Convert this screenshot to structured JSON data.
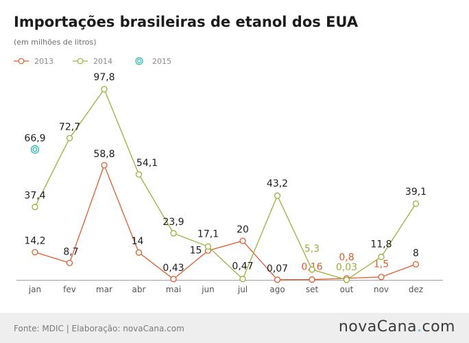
{
  "chart_data": {
    "type": "line",
    "title": "Importações brasileiras de etanol dos EUA",
    "subtitle": "(em milhões de litros)",
    "xlabel": "",
    "ylabel": "",
    "categories": [
      "jan",
      "fev",
      "mar",
      "abr",
      "mai",
      "jun",
      "jul",
      "ago",
      "set",
      "out",
      "nov",
      "dez"
    ],
    "ylim": [
      0,
      97.8
    ],
    "grid": false,
    "legend_position": "top-left",
    "series": [
      {
        "name": "2013",
        "color": "#e05a2b",
        "values": [
          14.2,
          8.7,
          58.8,
          14,
          0.43,
          15,
          20,
          0.07,
          0.16,
          0.8,
          1.5,
          8
        ],
        "labels": [
          "14,2",
          "8,7",
          "58,8",
          "14",
          "0,43",
          "15",
          "20",
          "0,07",
          "0,16",
          "0,8",
          "1,5",
          "8"
        ]
      },
      {
        "name": "2014",
        "color": "#9ab03a",
        "values": [
          37.4,
          72.7,
          97.8,
          54.1,
          23.9,
          17.1,
          0.47,
          43.2,
          5.3,
          0.03,
          11.8,
          39.1
        ],
        "labels": [
          "37,4",
          "72,7",
          "97,8",
          "54,1",
          "23,9",
          "17,1",
          "0,47",
          "43,2",
          "5,3",
          "0,03",
          "11,8",
          "39,1"
        ]
      },
      {
        "name": "2015",
        "color": "#29b8b0",
        "values": [
          66.9,
          null,
          null,
          null,
          null,
          null,
          null,
          null,
          null,
          null,
          null,
          null
        ],
        "labels": [
          "66,9",
          "",
          "",
          "",
          "",
          "",
          "",
          "",
          "",
          "",
          "",
          ""
        ]
      }
    ]
  },
  "footer": {
    "source": "Fonte: MDIC | Elaboração: novaCana.com",
    "logo_main": "novaCana",
    "logo_dot": ".",
    "logo_tld": "com"
  }
}
